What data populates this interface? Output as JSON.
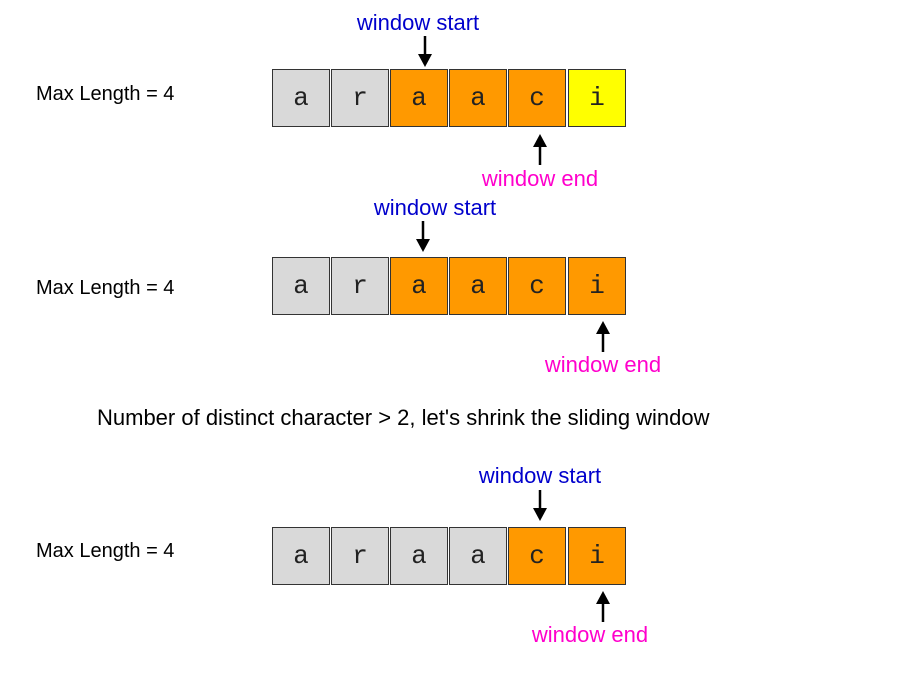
{
  "rows": [
    {
      "max_label": "Max Length = 4",
      "cells": [
        {
          "ch": "a",
          "state": "default"
        },
        {
          "ch": "r",
          "state": "default"
        },
        {
          "ch": "a",
          "state": "window"
        },
        {
          "ch": "a",
          "state": "window"
        },
        {
          "ch": "c",
          "state": "window"
        },
        {
          "ch": "i",
          "state": "new"
        }
      ],
      "start_label": "window start",
      "end_label": "window end"
    },
    {
      "max_label": "Max Length = 4",
      "cells": [
        {
          "ch": "a",
          "state": "default"
        },
        {
          "ch": "r",
          "state": "default"
        },
        {
          "ch": "a",
          "state": "window"
        },
        {
          "ch": "a",
          "state": "window"
        },
        {
          "ch": "c",
          "state": "window"
        },
        {
          "ch": "i",
          "state": "window"
        }
      ],
      "start_label": "window start",
      "end_label": "window end"
    },
    {
      "max_label": "Max Length = 4",
      "cells": [
        {
          "ch": "a",
          "state": "default"
        },
        {
          "ch": "r",
          "state": "default"
        },
        {
          "ch": "a",
          "state": "default"
        },
        {
          "ch": "a",
          "state": "default"
        },
        {
          "ch": "c",
          "state": "window"
        },
        {
          "ch": "i",
          "state": "window"
        }
      ],
      "start_label": "window start",
      "end_label": "window end"
    }
  ],
  "note": "Number of distinct character > 2, let's shrink the sliding window",
  "colors": {
    "default": "#d9d9d9",
    "window": "#ff9900",
    "new": "#ffff00",
    "start_label": "#0000cc",
    "end_label": "#ff00cc"
  }
}
